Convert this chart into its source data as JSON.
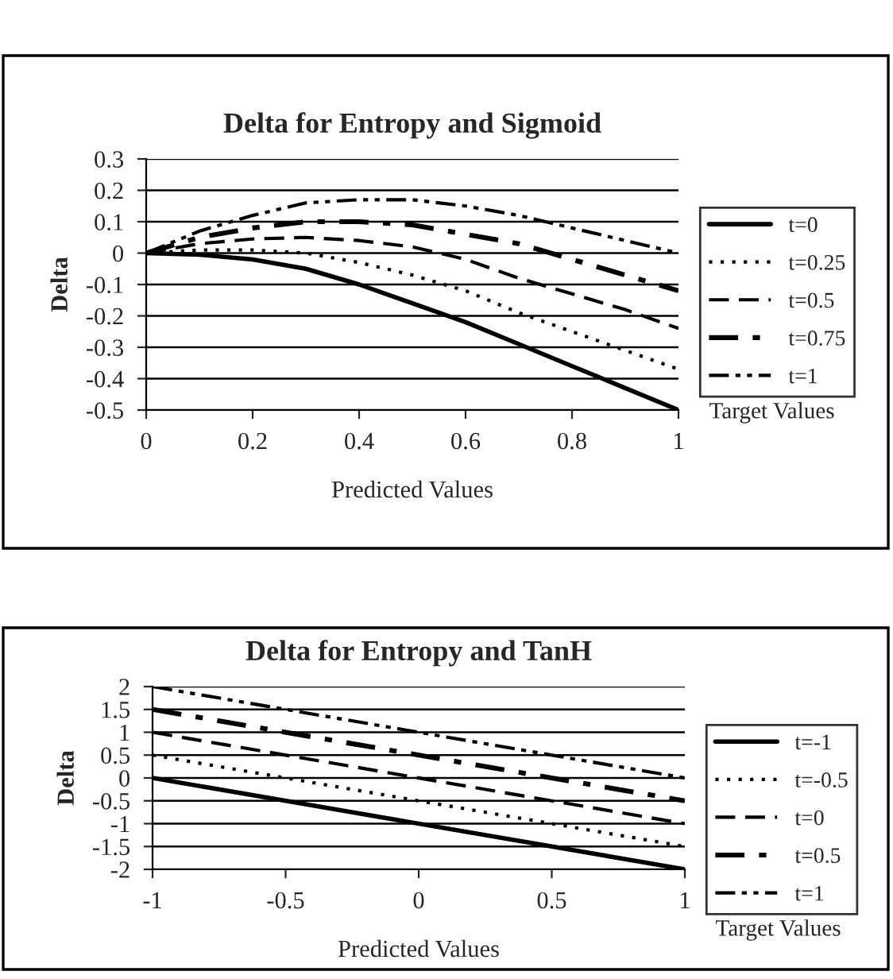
{
  "chart_data": [
    {
      "type": "line",
      "title": "Delta for Entropy and Sigmoid",
      "xlabel": "Predicted Values",
      "ylabel": "Delta",
      "legend_title": "Target Values",
      "legend": "right",
      "grid": "y",
      "xlim": [
        0,
        1
      ],
      "xticks": [
        0,
        0.2,
        0.4,
        0.6,
        0.8,
        1
      ],
      "ylim": [
        -0.5,
        0.3
      ],
      "yticks": [
        -0.5,
        -0.4,
        -0.3,
        -0.2,
        -0.1,
        0,
        0.1,
        0.2,
        0.3
      ],
      "x": [
        0,
        0.1,
        0.2,
        0.3,
        0.4,
        0.5,
        0.6,
        0.7,
        0.8,
        0.9,
        1
      ],
      "series": [
        {
          "name": "t=0",
          "color": "#000000",
          "line_style": "solid",
          "values": [
            0,
            -0.005,
            -0.02,
            -0.05,
            -0.1,
            -0.16,
            -0.22,
            -0.29,
            -0.36,
            -0.43,
            -0.5
          ]
        },
        {
          "name": "t=0.25",
          "color": "#000000",
          "line_style": "dotted",
          "values": [
            0,
            0.01,
            0.01,
            0,
            -0.03,
            -0.07,
            -0.12,
            -0.19,
            -0.25,
            -0.31,
            -0.37
          ]
        },
        {
          "name": "t=0.5",
          "color": "#000000",
          "line_style": "dashed",
          "values": [
            0,
            0.03,
            0.045,
            0.05,
            0.04,
            0.02,
            -0.02,
            -0.08,
            -0.13,
            -0.18,
            -0.24
          ]
        },
        {
          "name": "t=0.75",
          "color": "#000000",
          "line_style": "dashdot",
          "values": [
            0,
            0.05,
            0.08,
            0.1,
            0.1,
            0.09,
            0.06,
            0.03,
            -0.02,
            -0.07,
            -0.12
          ]
        },
        {
          "name": "t=1",
          "color": "#000000",
          "line_style": "dashdotdot",
          "values": [
            0,
            0.07,
            0.12,
            0.16,
            0.17,
            0.17,
            0.15,
            0.12,
            0.08,
            0.04,
            0
          ]
        }
      ]
    },
    {
      "type": "line",
      "title": "Delta for Entropy and TanH",
      "xlabel": "Predicted Values",
      "ylabel": "Delta",
      "legend_title": "Target Values",
      "legend": "right",
      "grid": "y",
      "xlim": [
        -1,
        1
      ],
      "xticks": [
        -1,
        -0.5,
        0,
        0.5,
        1
      ],
      "ylim": [
        -2,
        2
      ],
      "yticks": [
        -2,
        -1.5,
        -1,
        -0.5,
        0,
        0.5,
        1,
        1.5,
        2
      ],
      "x": [
        -1,
        1
      ],
      "series": [
        {
          "name": "t=-1",
          "color": "#000000",
          "line_style": "solid",
          "values": [
            0,
            -2
          ]
        },
        {
          "name": "t=-0.5",
          "color": "#000000",
          "line_style": "dotted",
          "values": [
            0.5,
            -1.5
          ]
        },
        {
          "name": "t=0",
          "color": "#000000",
          "line_style": "dashed",
          "values": [
            1,
            -1
          ]
        },
        {
          "name": "t=0.5",
          "color": "#000000",
          "line_style": "dashdot",
          "values": [
            1.5,
            -0.5
          ]
        },
        {
          "name": "t=1",
          "color": "#000000",
          "line_style": "dashdotdot",
          "values": [
            2,
            0
          ]
        }
      ]
    }
  ]
}
